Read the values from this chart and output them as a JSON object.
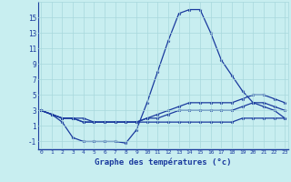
{
  "title": "Graphe des températures (°c)",
  "bg_color": "#c8eef0",
  "line_color": "#1a3a9e",
  "grid_color": "#a8d8dc",
  "x_hours": [
    0,
    1,
    2,
    3,
    4,
    5,
    6,
    7,
    8,
    9,
    10,
    11,
    12,
    13,
    14,
    15,
    16,
    17,
    18,
    19,
    20,
    21,
    22,
    23
  ],
  "temp_main": [
    3,
    2.5,
    1.5,
    -0.5,
    -1,
    -1,
    -1,
    -1,
    -1.2,
    0.5,
    4,
    8,
    12,
    15.5,
    16,
    16,
    13,
    9.5,
    7.5,
    5.5,
    4,
    3.5,
    3,
    2
  ],
  "line_high": [
    3,
    2.5,
    2,
    2,
    2,
    1.5,
    1.5,
    1.5,
    1.5,
    1.5,
    2,
    2.5,
    3,
    3.5,
    4,
    4,
    4,
    4,
    4,
    4.5,
    5,
    5,
    4.5,
    4
  ],
  "line_mid": [
    3,
    2.5,
    2,
    2,
    1.5,
    1.5,
    1.5,
    1.5,
    1.5,
    1.5,
    2,
    2,
    2.5,
    3,
    3,
    3,
    3,
    3,
    3,
    3.5,
    4,
    4,
    3.5,
    3
  ],
  "line_low": [
    3,
    2.5,
    2,
    2,
    1.5,
    1.5,
    1.5,
    1.5,
    1.5,
    1.5,
    1.5,
    1.5,
    1.5,
    1.5,
    1.5,
    1.5,
    1.5,
    1.5,
    1.5,
    2,
    2,
    2,
    2,
    2
  ],
  "ylim": [
    -2,
    17
  ],
  "yticks": [
    -1,
    1,
    3,
    5,
    7,
    9,
    11,
    13,
    15
  ],
  "xlim": [
    -0.3,
    23.3
  ],
  "xticks": [
    0,
    1,
    2,
    3,
    4,
    5,
    6,
    7,
    8,
    9,
    10,
    11,
    12,
    13,
    14,
    15,
    16,
    17,
    18,
    19,
    20,
    21,
    22,
    23
  ]
}
